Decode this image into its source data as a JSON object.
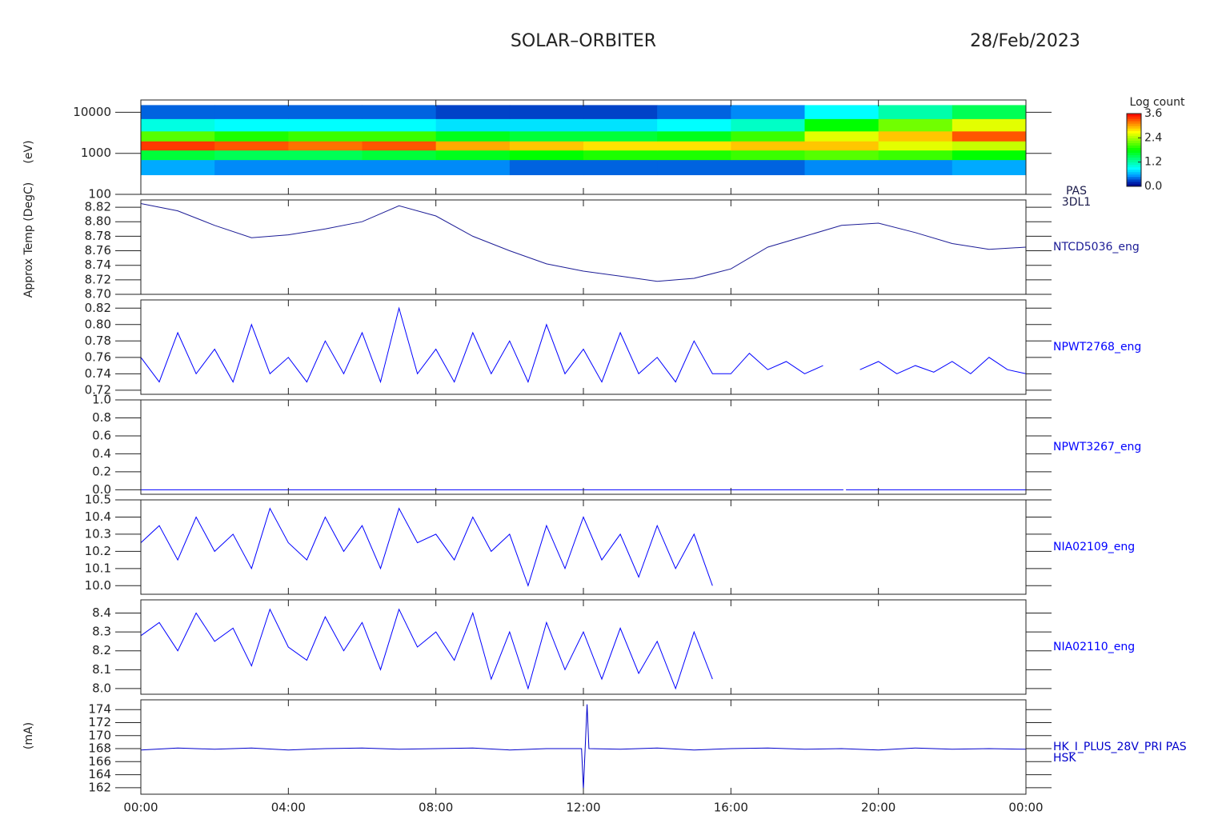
{
  "title": "SOLAR–ORBITER",
  "date": "28/Feb/2023",
  "chart_data": [
    {
      "type": "heatmap",
      "label_lines": [
        "PAS",
        "3DL1"
      ],
      "label_color": "#1a1a4a",
      "ylabel": "(eV)",
      "xlim": [
        0,
        24
      ],
      "ylim": [
        100,
        20000
      ],
      "log_y": true,
      "yticks": [
        100,
        1000,
        10000
      ],
      "xbins": [
        0,
        2,
        4,
        6,
        8,
        10,
        12,
        14,
        16,
        18,
        20,
        22,
        24
      ],
      "ybins": [
        300,
        700,
        1200,
        2000,
        3500,
        7000,
        15000
      ],
      "z": [
        [
          0.6,
          0.5,
          0.5,
          0.5,
          0.5,
          0.4,
          0.4,
          0.4,
          0.4,
          0.5,
          0.5,
          0.6
        ],
        [
          1.6,
          1.5,
          1.5,
          1.6,
          1.7,
          1.8,
          1.9,
          1.9,
          2.0,
          2.1,
          2.0,
          1.8
        ],
        [
          3.4,
          3.3,
          3.2,
          3.3,
          3.0,
          2.9,
          2.8,
          2.8,
          2.9,
          2.9,
          2.6,
          2.5
        ],
        [
          2.1,
          1.9,
          2.0,
          2.0,
          1.7,
          1.6,
          1.6,
          1.7,
          2.0,
          2.6,
          2.9,
          3.3
        ],
        [
          1.0,
          0.9,
          0.9,
          0.9,
          0.8,
          0.8,
          0.8,
          0.9,
          1.1,
          1.8,
          2.2,
          2.6
        ],
        [
          0.4,
          0.4,
          0.4,
          0.4,
          0.3,
          0.3,
          0.3,
          0.4,
          0.5,
          0.9,
          1.2,
          1.5
        ]
      ],
      "colormap": "rainbow",
      "colorbar": {
        "title": "Log count",
        "zlim": [
          0,
          3.6
        ],
        "ticks": [
          {
            "value": 0,
            "label": "0.0"
          },
          1.2,
          2.4,
          3.6
        ]
      }
    },
    {
      "type": "line",
      "label_lines": [
        "NTCD5036_eng"
      ],
      "color": "#1c1c96",
      "ylabel": "Approx Temp (DegC)",
      "xlim": [
        0,
        24
      ],
      "ylim": [
        8.7,
        8.83
      ],
      "yticks": [
        {
          "value": 8.7,
          "label": "8.70"
        },
        8.72,
        8.74,
        8.76,
        8.78,
        {
          "value": 8.8,
          "label": "8.80"
        },
        8.82
      ],
      "x": [
        0,
        1,
        2,
        3,
        4,
        5,
        6,
        7,
        8,
        9,
        10,
        11,
        12,
        13,
        14,
        15,
        16,
        17,
        18,
        19,
        20,
        21,
        22,
        23,
        24
      ],
      "values": [
        8.825,
        8.815,
        8.795,
        8.778,
        8.782,
        8.79,
        8.8,
        8.822,
        8.808,
        8.78,
        8.76,
        8.742,
        8.732,
        8.725,
        8.718,
        8.722,
        8.735,
        8.765,
        8.78,
        8.795,
        8.798,
        8.785,
        8.77,
        8.762,
        8.765
      ]
    },
    {
      "type": "line",
      "label_lines": [
        "NPWT2768_eng"
      ],
      "color": "#0000ff",
      "xlim": [
        0,
        24
      ],
      "ylim": [
        0.715,
        0.83
      ],
      "yticks": [
        0.72,
        0.74,
        0.76,
        0.78,
        {
          "value": 0.8,
          "label": "0.80"
        },
        0.82
      ],
      "x": [
        0,
        0.5,
        1,
        1.5,
        2,
        2.5,
        3,
        3.5,
        4,
        4.5,
        5,
        5.5,
        6,
        6.5,
        7,
        7.5,
        8,
        8.5,
        9,
        9.5,
        10,
        10.5,
        11,
        11.5,
        12,
        12.5,
        13,
        13.5,
        14,
        14.5,
        15,
        15.5,
        16,
        16.5,
        17,
        17.5,
        18,
        18.5,
        19,
        19.5,
        20,
        20.5,
        21,
        21.5,
        22,
        22.5,
        23,
        23.5,
        24
      ],
      "values": [
        0.76,
        0.73,
        0.79,
        0.74,
        0.77,
        0.73,
        0.8,
        0.74,
        0.76,
        0.73,
        0.78,
        0.74,
        0.79,
        0.73,
        0.82,
        0.74,
        0.77,
        0.73,
        0.79,
        0.74,
        0.78,
        0.73,
        0.8,
        0.74,
        0.77,
        0.73,
        0.79,
        0.74,
        0.76,
        0.73,
        0.78,
        0.74,
        0.74,
        0.765,
        0.745,
        0.755,
        0.74,
        0.75,
        null,
        0.745,
        0.755,
        0.74,
        0.75,
        0.742,
        0.755,
        0.74,
        0.76,
        0.745,
        0.74
      ]
    },
    {
      "type": "line",
      "label_lines": [
        "NPWT3267_eng"
      ],
      "color": "#0000ff",
      "xlim": [
        0,
        24
      ],
      "ylim": [
        -0.05,
        1.0
      ],
      "yticks": [
        {
          "value": 0,
          "label": "0.0"
        },
        0.2,
        0.4,
        0.6,
        0.8,
        {
          "value": 1,
          "label": "1.0"
        }
      ],
      "x": [
        0,
        19.05,
        19.08,
        19.12,
        24
      ],
      "values": [
        0,
        0,
        null,
        0,
        0
      ]
    },
    {
      "type": "line",
      "label_lines": [
        "NIA02109_eng"
      ],
      "color": "#0000ff",
      "xlim": [
        0,
        24
      ],
      "ylim": [
        9.95,
        10.5
      ],
      "yticks": [
        {
          "value": 10,
          "label": "10.0"
        },
        10.1,
        10.2,
        10.3,
        10.4,
        10.5
      ],
      "x": [
        0,
        0.5,
        1,
        1.5,
        2,
        2.5,
        3,
        3.5,
        4,
        4.5,
        5,
        5.5,
        6,
        6.5,
        7,
        7.5,
        8,
        8.5,
        9,
        9.5,
        10,
        10.5,
        11,
        11.5,
        12,
        12.5,
        13,
        13.5,
        14,
        14.5,
        15,
        15.5
      ],
      "values": [
        10.25,
        10.35,
        10.15,
        10.4,
        10.2,
        10.3,
        10.1,
        10.45,
        10.25,
        10.15,
        10.4,
        10.2,
        10.35,
        10.1,
        10.45,
        10.25,
        10.3,
        10.15,
        10.4,
        10.2,
        10.3,
        10.0,
        10.35,
        10.1,
        10.4,
        10.15,
        10.3,
        10.05,
        10.35,
        10.1,
        10.3,
        10.0
      ]
    },
    {
      "type": "line",
      "label_lines": [
        "NIA02110_eng"
      ],
      "color": "#0000ff",
      "xlim": [
        0,
        24
      ],
      "ylim": [
        7.97,
        8.47
      ],
      "yticks": [
        {
          "value": 8,
          "label": "8.0"
        },
        8.1,
        8.2,
        8.3,
        8.4
      ],
      "x": [
        0,
        0.5,
        1,
        1.5,
        2,
        2.5,
        3,
        3.5,
        4,
        4.5,
        5,
        5.5,
        6,
        6.5,
        7,
        7.5,
        8,
        8.5,
        9,
        9.5,
        10,
        10.5,
        11,
        11.5,
        12,
        12.5,
        13,
        13.5,
        14,
        14.5,
        15,
        15.5
      ],
      "values": [
        8.28,
        8.35,
        8.2,
        8.4,
        8.25,
        8.32,
        8.12,
        8.42,
        8.22,
        8.15,
        8.38,
        8.2,
        8.35,
        8.1,
        8.42,
        8.22,
        8.3,
        8.15,
        8.4,
        8.05,
        8.3,
        8.0,
        8.35,
        8.1,
        8.3,
        8.05,
        8.32,
        8.08,
        8.25,
        8.0,
        8.3,
        8.05
      ]
    },
    {
      "type": "line",
      "label_lines": [
        "HK_I_PLUS_28V_PRI PAS",
        "HSK"
      ],
      "color": "#0000cc",
      "ylabel": "(mA)",
      "xlim": [
        0,
        24
      ],
      "ylim": [
        161,
        175.5
      ],
      "yticks": [
        162,
        164,
        166,
        168,
        170,
        172,
        174
      ],
      "xticks": [
        {
          "value": 0,
          "label": "00:00"
        },
        {
          "value": 4,
          "label": "04:00"
        },
        {
          "value": 8,
          "label": "08:00"
        },
        {
          "value": 12,
          "label": "12:00"
        },
        {
          "value": 16,
          "label": "16:00"
        },
        {
          "value": 20,
          "label": "20:00"
        },
        {
          "value": 24,
          "label": "00:00"
        }
      ],
      "x": [
        0,
        1,
        2,
        3,
        4,
        5,
        6,
        7,
        8,
        9,
        10,
        11,
        11.95,
        12,
        12.1,
        12.15,
        13,
        14,
        15,
        16,
        17,
        18,
        19,
        20,
        21,
        22,
        23,
        24
      ],
      "values": [
        167.8,
        168.1,
        167.9,
        168.1,
        167.8,
        168.0,
        168.1,
        167.9,
        168.0,
        168.1,
        167.8,
        168.0,
        168,
        161.8,
        174.8,
        168,
        167.9,
        168.1,
        167.8,
        168.0,
        168.1,
        167.9,
        168.0,
        167.8,
        168.1,
        167.9,
        168.0,
        167.9
      ]
    }
  ]
}
